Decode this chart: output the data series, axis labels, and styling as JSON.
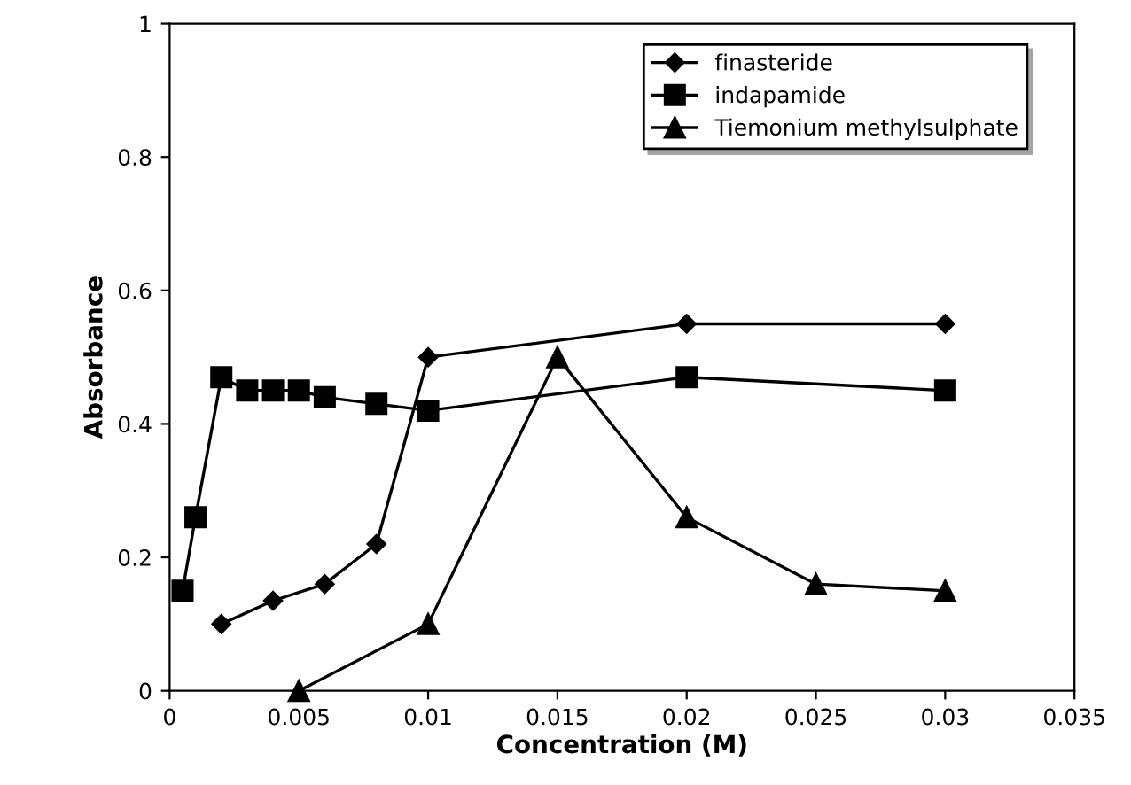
{
  "chart_data": {
    "type": "line",
    "xlabel": "Concentration (M)",
    "ylabel": "Absorbance",
    "xlim": [
      0,
      0.035
    ],
    "xticks": [
      0,
      0.005,
      0.01,
      0.015,
      0.02,
      0.025,
      0.03,
      0.035
    ],
    "ylim": [
      0,
      1
    ],
    "yticks": [
      0,
      0.2,
      0.4,
      0.6,
      0.8,
      1
    ],
    "grid": false,
    "legend": "top right",
    "line_style": "solid",
    "series": [
      {
        "name": "finasteride",
        "color": "#000000",
        "marker": "diamond",
        "x": [
          0.002,
          0.004,
          0.006,
          0.008,
          0.01,
          0.02,
          0.03
        ],
        "values": [
          0.1,
          0.135,
          0.16,
          0.22,
          0.5,
          0.55,
          0.55
        ]
      },
      {
        "name": "indapamide",
        "color": "#000000",
        "marker": "square",
        "x": [
          0.0005,
          0.001,
          0.002,
          0.003,
          0.004,
          0.005,
          0.006,
          0.008,
          0.01,
          0.02,
          0.03
        ],
        "values": [
          0.15,
          0.26,
          0.47,
          0.45,
          0.45,
          0.45,
          0.44,
          0.43,
          0.42,
          0.47,
          0.45
        ]
      },
      {
        "name": "Tiemonium methylsulphate",
        "color": "#000000",
        "marker": "triangle",
        "x": [
          0.005,
          0.01,
          0.015,
          0.02,
          0.025,
          0.03
        ],
        "values": [
          0,
          0.1,
          0.5,
          0.26,
          0.16,
          0.15
        ]
      }
    ]
  }
}
